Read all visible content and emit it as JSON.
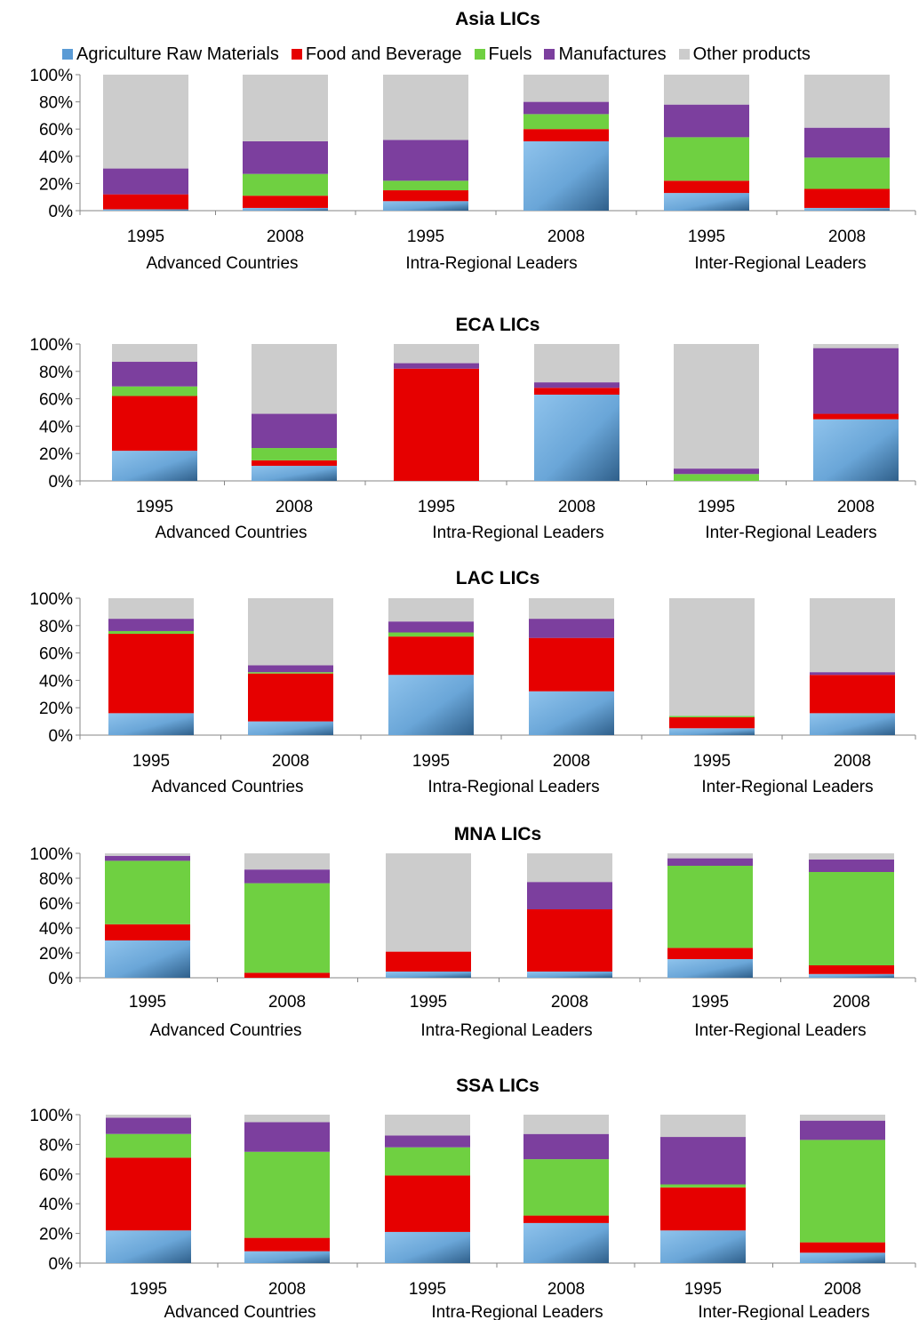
{
  "colors": {
    "Agriculture Raw Materials": "#5b9bd5",
    "Food and Beverage": "#e60000",
    "Fuels": "#6fd041",
    "Manufactures": "#7c3f9e",
    "Other products": "#cccccc"
  },
  "legend": [
    "Agriculture Raw Materials",
    "Food and Beverage",
    "Fuels",
    "Manufactures",
    "Other products"
  ],
  "chart_data": [
    {
      "type": "bar",
      "stacked": true,
      "title": "Asia LICs",
      "groups": [
        "Advanced Countries",
        "Intra-Regional Leaders",
        "Inter-Regional Leaders"
      ],
      "years": [
        "1995",
        "2008",
        "1995",
        "2008",
        "1995",
        "2008"
      ],
      "ytick_labels": [
        "0%",
        "20%",
        "40%",
        "60%",
        "80%",
        "100%"
      ],
      "ylim": [
        0,
        100
      ],
      "series": [
        {
          "name": "Agriculture Raw Materials",
          "values": [
            1,
            2,
            7,
            51,
            13,
            2
          ]
        },
        {
          "name": "Food and Beverage",
          "values": [
            11,
            9,
            8,
            9,
            9,
            14
          ]
        },
        {
          "name": "Fuels",
          "values": [
            0,
            16,
            7,
            11,
            32,
            23
          ]
        },
        {
          "name": "Manufactures",
          "values": [
            19,
            24,
            30,
            9,
            24,
            22
          ]
        },
        {
          "name": "Other products",
          "values": [
            69,
            49,
            48,
            20,
            22,
            39
          ]
        }
      ]
    },
    {
      "type": "bar",
      "stacked": true,
      "title": "ECA LICs",
      "groups": [
        "Advanced Countries",
        "Intra-Regional Leaders",
        "Inter-Regional Leaders"
      ],
      "years": [
        "1995",
        "2008",
        "1995",
        "2008",
        "1995",
        "2008"
      ],
      "ytick_labels": [
        "0%",
        "20%",
        "40%",
        "60%",
        "80%",
        "100%"
      ],
      "ylim": [
        0,
        100
      ],
      "series": [
        {
          "name": "Agriculture Raw Materials",
          "values": [
            22,
            11,
            0,
            63,
            0,
            45
          ]
        },
        {
          "name": "Food and Beverage",
          "values": [
            40,
            4,
            82,
            5,
            0,
            4
          ]
        },
        {
          "name": "Fuels",
          "values": [
            7,
            9,
            0,
            0,
            5,
            0
          ]
        },
        {
          "name": "Manufactures",
          "values": [
            18,
            25,
            4,
            4,
            4,
            48
          ]
        },
        {
          "name": "Other products",
          "values": [
            13,
            51,
            14,
            28,
            91,
            3
          ]
        }
      ]
    },
    {
      "type": "bar",
      "stacked": true,
      "title": "LAC LICs",
      "groups": [
        "Advanced Countries",
        "Intra-Regional Leaders",
        "Inter-Regional Leaders"
      ],
      "years": [
        "1995",
        "2008",
        "1995",
        "2008",
        "1995",
        "2008"
      ],
      "ytick_labels": [
        "0%",
        "20%",
        "40%",
        "60%",
        "80%",
        "100%"
      ],
      "ylim": [
        0,
        100
      ],
      "series": [
        {
          "name": "Agriculture Raw Materials",
          "values": [
            16,
            10,
            44,
            32,
            5,
            16
          ]
        },
        {
          "name": "Food and Beverage",
          "values": [
            58,
            35,
            28,
            39,
            8,
            28
          ]
        },
        {
          "name": "Fuels",
          "values": [
            2,
            1,
            3,
            0,
            1,
            0
          ]
        },
        {
          "name": "Manufactures",
          "values": [
            9,
            5,
            8,
            14,
            0,
            2
          ]
        },
        {
          "name": "Other products",
          "values": [
            15,
            49,
            17,
            15,
            86,
            54
          ]
        }
      ]
    },
    {
      "type": "bar",
      "stacked": true,
      "title": "MNA LICs",
      "groups": [
        "Advanced Countries",
        "Intra-Regional Leaders",
        "Inter-Regional Leaders"
      ],
      "years": [
        "1995",
        "2008",
        "1995",
        "2008",
        "1995",
        "2008"
      ],
      "ytick_labels": [
        "0%",
        "20%",
        "40%",
        "60%",
        "80%",
        "100%"
      ],
      "ylim": [
        0,
        100
      ],
      "series": [
        {
          "name": "Agriculture Raw Materials",
          "values": [
            30,
            0,
            5,
            5,
            15,
            3
          ]
        },
        {
          "name": "Food and Beverage",
          "values": [
            13,
            4,
            16,
            50,
            9,
            7
          ]
        },
        {
          "name": "Fuels",
          "values": [
            51,
            72,
            0,
            0,
            66,
            75
          ]
        },
        {
          "name": "Manufactures",
          "values": [
            4,
            11,
            0,
            22,
            6,
            10
          ]
        },
        {
          "name": "Other products",
          "values": [
            2,
            13,
            79,
            23,
            4,
            5
          ]
        }
      ]
    },
    {
      "type": "bar",
      "stacked": true,
      "title": "SSA LICs",
      "groups": [
        "Advanced Countries",
        "Intra-Regional Leaders",
        "Inter-Regional Leaders"
      ],
      "years": [
        "1995",
        "2008",
        "1995",
        "2008",
        "1995",
        "2008"
      ],
      "ytick_labels": [
        "0%",
        "20%",
        "40%",
        "60%",
        "80%",
        "100%"
      ],
      "ylim": [
        0,
        100
      ],
      "series": [
        {
          "name": "Agriculture Raw Materials",
          "values": [
            22,
            8,
            21,
            27,
            22,
            7
          ]
        },
        {
          "name": "Food and Beverage",
          "values": [
            49,
            9,
            38,
            5,
            29,
            7
          ]
        },
        {
          "name": "Fuels",
          "values": [
            16,
            58,
            19,
            38,
            2,
            69
          ]
        },
        {
          "name": "Manufactures",
          "values": [
            11,
            20,
            8,
            17,
            32,
            13
          ]
        },
        {
          "name": "Other products",
          "values": [
            2,
            5,
            14,
            13,
            15,
            4
          ]
        }
      ]
    }
  ]
}
